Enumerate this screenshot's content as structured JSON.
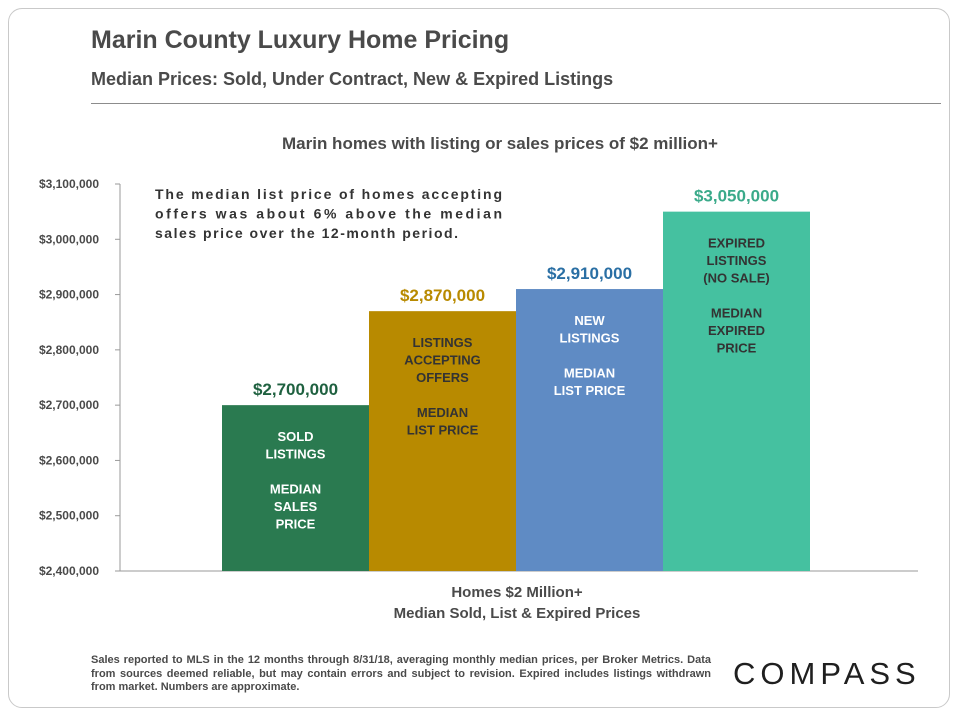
{
  "title": "Marin County Luxury Home Pricing",
  "subtitle": "Median Prices: Sold, Under Contract, New & Expired Listings",
  "chart_data": {
    "type": "bar",
    "title": "Marin homes with listing or sales prices of $2 million+",
    "categories": [
      "SOLD LISTINGS",
      "LISTINGS ACCEPTING OFFERS",
      "NEW LISTINGS",
      "EXPIRED LISTINGS (NO SALE)"
    ],
    "values": [
      2700000,
      2870000,
      2910000,
      3050000
    ],
    "value_labels": [
      "$2,700,000",
      "$2,870,000",
      "$2,910,000",
      "$3,050,000"
    ],
    "bar_text": [
      [
        "SOLD",
        "LISTINGS",
        "",
        "MEDIAN",
        "SALES",
        "PRICE"
      ],
      [
        "LISTINGS",
        "ACCEPTING",
        "OFFERS",
        "",
        "MEDIAN",
        "LIST PRICE"
      ],
      [
        "NEW",
        "LISTINGS",
        "",
        "MEDIAN",
        "LIST PRICE"
      ],
      [
        "EXPIRED",
        "LISTINGS",
        "(NO SALE)",
        "",
        "MEDIAN",
        "EXPIRED",
        "PRICE"
      ]
    ],
    "colors": [
      "#2a7a50",
      "#b88a00",
      "#5f8bc4",
      "#45c1a0"
    ],
    "label_colors": [
      "#1f6140",
      "#b88a00",
      "#2a6fa4",
      "#3aaa8a"
    ],
    "ylim": [
      2400000,
      3100000
    ],
    "yticks": [
      2400000,
      2500000,
      2600000,
      2700000,
      2800000,
      2900000,
      3000000,
      3100000
    ],
    "ytick_labels": [
      "$2,400,000",
      "$2,500,000",
      "$2,600,000",
      "$2,700,000",
      "$2,800,000",
      "$2,900,000",
      "$3,000,000",
      "$3,100,000"
    ],
    "xlabel_lines": [
      "Homes $2 Million+",
      "Median Sold, List & Expired Prices"
    ],
    "annotation_lines": [
      "The median list price of homes accepting",
      "offers was about 6% above the median",
      "sales price over the 12-month period."
    ],
    "grid": false,
    "legend": "none"
  },
  "footnote": "Sales reported to MLS in the 12 months through 8/31/18, averaging monthly median prices, per Broker Metrics. Data from sources deemed reliable, but may contain errors and subject to revision. Expired includes listings withdrawn from market. Numbers are approximate.",
  "brand": "COMPASS"
}
